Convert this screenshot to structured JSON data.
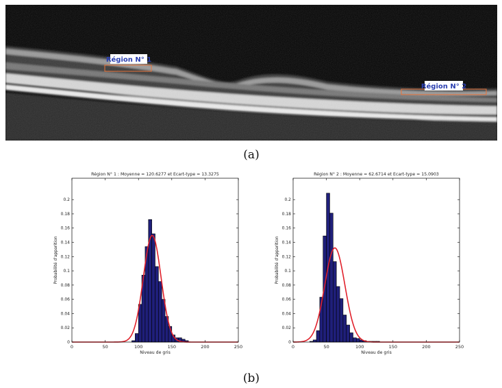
{
  "panel_a": {
    "caption": "(a)",
    "regions": [
      {
        "label": "Région N° 1",
        "color": "#e8733a"
      },
      {
        "label": "Région N° 2",
        "color": "#e8733a"
      }
    ]
  },
  "panel_b": {
    "caption": "(b)"
  },
  "colors": {
    "bar_fill": "#1f1f7a",
    "bar_edge": "#000000",
    "curve": "#e0202a"
  },
  "chart_data": [
    {
      "type": "bar",
      "title": "Région N° 1 : Moyenne = 120.6277 et Ecart-type = 13.3275",
      "xlabel": "Niveau de gris",
      "ylabel": "Probabilité d'apparition",
      "xlim": [
        0,
        250
      ],
      "ylim": [
        0,
        0.23
      ],
      "xticks": [
        "0",
        "50",
        "100",
        "150",
        "200",
        "250"
      ],
      "yticks": [
        "0",
        "0.02",
        "0.04",
        "0.06",
        "0.08",
        "0.1",
        "0.12",
        "0.14",
        "0.16",
        "0.18",
        "0.2"
      ],
      "bin_width": 5,
      "x": [
        92.5,
        97.5,
        102.5,
        107.5,
        112.5,
        117.5,
        122.5,
        127.5,
        132.5,
        137.5,
        142.5,
        147.5,
        152.5,
        157.5,
        162.5,
        167.5,
        172.5
      ],
      "values": [
        0.002,
        0.012,
        0.053,
        0.094,
        0.134,
        0.172,
        0.152,
        0.106,
        0.085,
        0.06,
        0.036,
        0.022,
        0.01,
        0.006,
        0.006,
        0.004,
        0.002
      ],
      "fit": {
        "type": "gaussian",
        "mean": 120.6277,
        "std": 13.3275
      }
    },
    {
      "type": "bar",
      "title": "Région N° 2 : Moyenne = 62.6714 et Ecart-type = 15.0903",
      "xlabel": "Niveau de gris",
      "ylabel": "Probabilité d'apparition",
      "xlim": [
        0,
        250
      ],
      "ylim": [
        0,
        0.23
      ],
      "xticks": [
        "0",
        "50",
        "100",
        "150",
        "200",
        "250"
      ],
      "yticks": [
        "0",
        "0.02",
        "0.04",
        "0.06",
        "0.08",
        "0.1",
        "0.12",
        "0.14",
        "0.16",
        "0.18",
        "0.2"
      ],
      "bin_width": 5,
      "x": [
        27.5,
        32.5,
        37.5,
        42.5,
        47.5,
        52.5,
        57.5,
        62.5,
        67.5,
        72.5,
        77.5,
        82.5,
        87.5,
        92.5,
        97.5,
        102.5,
        107.5,
        112.5,
        117.5,
        122.5,
        127.5
      ],
      "values": [
        0.001,
        0.003,
        0.016,
        0.063,
        0.149,
        0.209,
        0.181,
        0.113,
        0.078,
        0.061,
        0.038,
        0.024,
        0.013,
        0.006,
        0.005,
        0.003,
        0.002,
        0.001,
        0.001,
        0.001,
        0.001
      ],
      "fit": {
        "type": "gaussian",
        "mean": 62.6714,
        "std": 15.0903
      }
    }
  ]
}
